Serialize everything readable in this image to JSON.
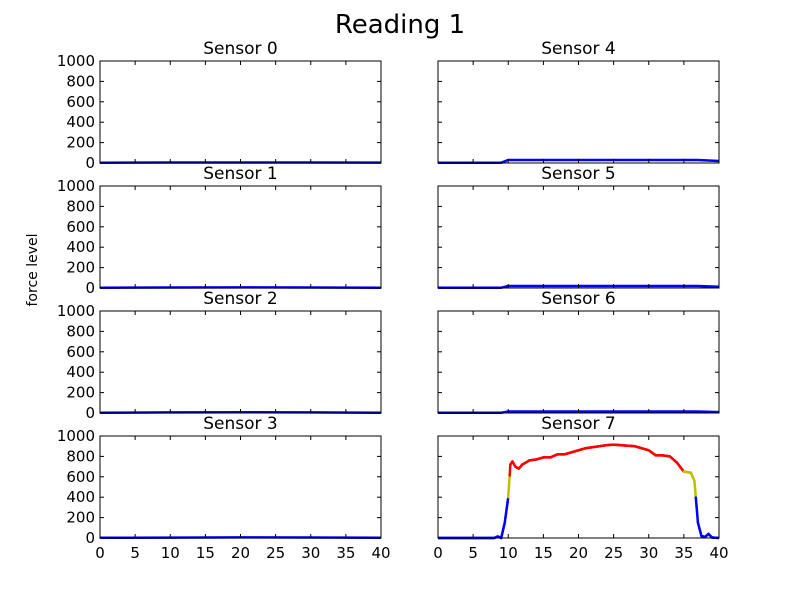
{
  "figure": {
    "title": "Reading 1",
    "ylabel": "force level"
  },
  "colors": {
    "low": "#0000ff",
    "mid": "#bfbf00",
    "high": "#ff0000"
  },
  "chart_data": {
    "type": "line",
    "layout": "4x2 grid",
    "xlim": [
      0,
      40
    ],
    "ylim": [
      0,
      1000
    ],
    "x_ticks": [
      0,
      5,
      10,
      15,
      20,
      25,
      30,
      35,
      40
    ],
    "y_ticks": [
      0,
      200,
      400,
      600,
      800,
      1000
    ],
    "subplots": [
      {
        "title": "Sensor 0",
        "x": [
          0,
          10,
          20,
          30,
          40
        ],
        "y": [
          2,
          5,
          5,
          5,
          4
        ]
      },
      {
        "title": "Sensor 1",
        "x": [
          0,
          10,
          20,
          30,
          40
        ],
        "y": [
          2,
          5,
          6,
          5,
          3
        ]
      },
      {
        "title": "Sensor 2",
        "x": [
          0,
          10,
          20,
          30,
          40
        ],
        "y": [
          2,
          6,
          7,
          6,
          3
        ]
      },
      {
        "title": "Sensor 3",
        "x": [
          0,
          10,
          20,
          30,
          40
        ],
        "y": [
          2,
          4,
          6,
          5,
          3
        ]
      },
      {
        "title": "Sensor 4",
        "x": [
          0,
          9,
          10,
          20,
          30,
          37,
          40
        ],
        "y": [
          2,
          3,
          30,
          30,
          30,
          30,
          20
        ]
      },
      {
        "title": "Sensor 5",
        "x": [
          0,
          9,
          10,
          20,
          30,
          37,
          40
        ],
        "y": [
          2,
          3,
          20,
          20,
          20,
          20,
          12
        ]
      },
      {
        "title": "Sensor 6",
        "x": [
          0,
          9,
          10,
          20,
          30,
          37,
          40
        ],
        "y": [
          2,
          3,
          15,
          15,
          15,
          15,
          8
        ]
      },
      {
        "title": "Sensor 7",
        "x": [
          0,
          8,
          8.5,
          9,
          9.5,
          10,
          10.3,
          10.6,
          11,
          11.5,
          12,
          13,
          14,
          15,
          16,
          17,
          18,
          19,
          20,
          21,
          22,
          23,
          24,
          25,
          26,
          27,
          28,
          29,
          30,
          31,
          32,
          33,
          34,
          35,
          35.5,
          36,
          36.5,
          37,
          37.5,
          38,
          38.5,
          39,
          40
        ],
        "y": [
          0,
          0,
          15,
          0,
          150,
          400,
          720,
          750,
          700,
          680,
          720,
          760,
          770,
          790,
          790,
          820,
          820,
          840,
          860,
          880,
          890,
          900,
          910,
          915,
          910,
          905,
          900,
          880,
          860,
          810,
          810,
          800,
          740,
          650,
          645,
          640,
          560,
          150,
          20,
          10,
          40,
          5,
          0
        ]
      }
    ]
  }
}
